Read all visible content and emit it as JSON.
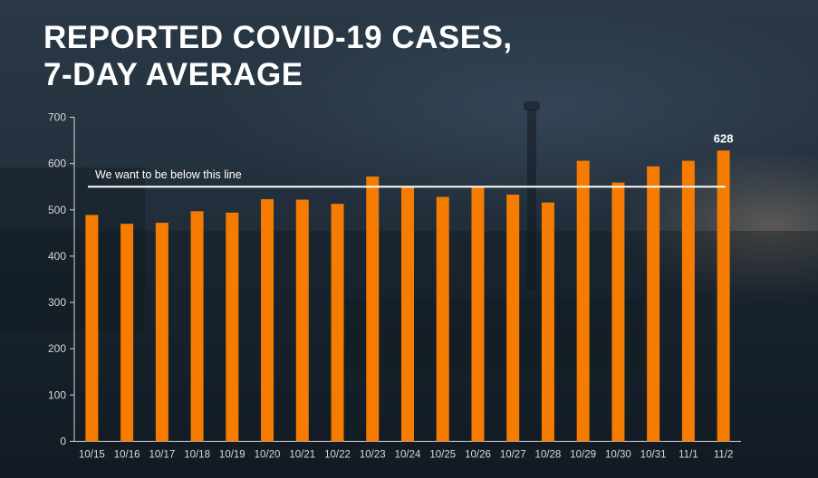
{
  "title_lines": [
    "REPORTED COVID-19 CASES,",
    "7-DAY AVERAGE"
  ],
  "colors": {
    "bar": "#f57c00",
    "text": "#ffffff",
    "axis": "#d8d8d8",
    "target_line": "#ffffff"
  },
  "chart_data": {
    "type": "bar",
    "title": "REPORTED COVID-19 CASES, 7-DAY AVERAGE",
    "xlabel": "",
    "ylabel": "",
    "categories": [
      "10/15",
      "10/16",
      "10/17",
      "10/18",
      "10/19",
      "10/20",
      "10/21",
      "10/22",
      "10/23",
      "10/24",
      "10/25",
      "10/26",
      "10/27",
      "10/28",
      "10/29",
      "10/30",
      "10/31",
      "11/1",
      "11/2"
    ],
    "values": [
      489,
      470,
      472,
      497,
      494,
      523,
      522,
      513,
      572,
      551,
      528,
      549,
      533,
      516,
      606,
      559,
      594,
      606,
      628
    ],
    "ylim": [
      0,
      700
    ],
    "yticks": [
      0,
      100,
      200,
      300,
      400,
      500,
      600,
      700
    ],
    "grid": false,
    "legend": "none",
    "data_labels": [
      {
        "category": "11/2",
        "text": "628"
      }
    ],
    "reference_line": {
      "value": 550,
      "label": "We want to be below this line"
    }
  }
}
